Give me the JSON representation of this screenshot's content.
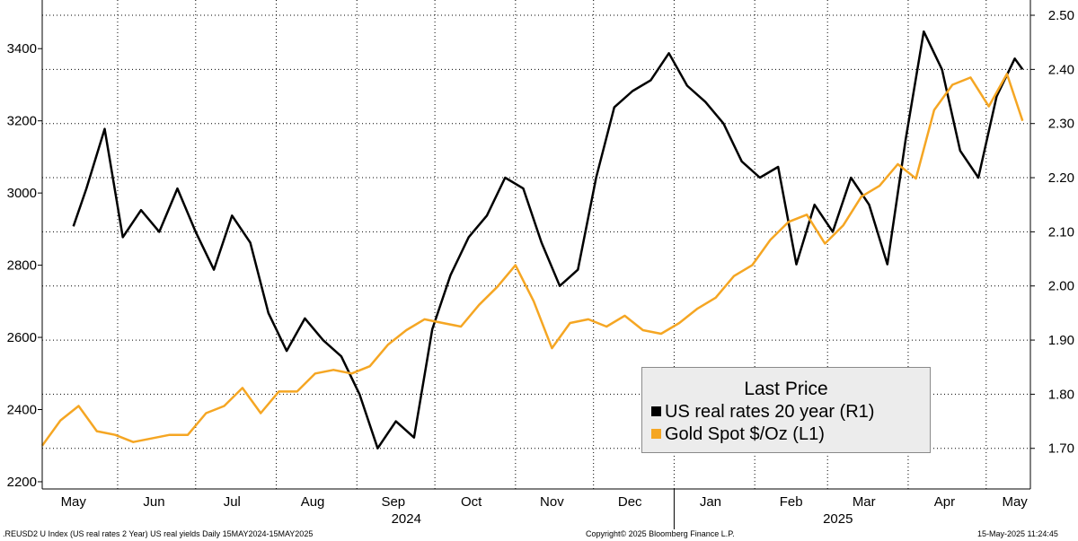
{
  "chart_data": {
    "type": "line",
    "xlabel": "",
    "year_labels": [
      {
        "label": "2024",
        "date": "2024-09-20"
      },
      {
        "label": "2025",
        "date": "2025-03-05"
      }
    ],
    "x_range": [
      "2024-05-03",
      "2025-05-18"
    ],
    "x_ticks": [
      {
        "label": "May",
        "date": "2024-05-15"
      },
      {
        "label": "Jun",
        "date": "2024-06-15"
      },
      {
        "label": "Jul",
        "date": "2024-07-15"
      },
      {
        "label": "Aug",
        "date": "2024-08-15"
      },
      {
        "label": "Sep",
        "date": "2024-09-15"
      },
      {
        "label": "Oct",
        "date": "2024-10-15"
      },
      {
        "label": "Nov",
        "date": "2024-11-15"
      },
      {
        "label": "Dec",
        "date": "2024-12-15"
      },
      {
        "label": "Jan",
        "date": "2025-01-15"
      },
      {
        "label": "Feb",
        "date": "2025-02-15"
      },
      {
        "label": "Mar",
        "date": "2025-03-15"
      },
      {
        "label": "Apr",
        "date": "2025-04-15"
      },
      {
        "label": "May",
        "date": "2025-05-12"
      }
    ],
    "y_left": {
      "ylim": [
        2180,
        3500
      ],
      "ticks": [
        "2200",
        "2400",
        "2600",
        "2800",
        "3000",
        "3200",
        "3400"
      ]
    },
    "y_right": {
      "ylim": [
        1.625,
        2.505
      ],
      "ticks": [
        "1.70",
        "1.80",
        "1.90",
        "2.00",
        "2.10",
        "2.20",
        "2.30",
        "2.40",
        "2.50"
      ]
    },
    "grid": true,
    "series": [
      {
        "name": "US real rates 20 year  (R1)",
        "axis": "right",
        "color": "#000000",
        "x": [
          "2024-05-15",
          "2024-05-20",
          "2024-05-27",
          "2024-06-03",
          "2024-06-10",
          "2024-06-17",
          "2024-06-24",
          "2024-07-01",
          "2024-07-08",
          "2024-07-15",
          "2024-07-22",
          "2024-07-29",
          "2024-08-05",
          "2024-08-12",
          "2024-08-19",
          "2024-08-26",
          "2024-09-02",
          "2024-09-09",
          "2024-09-16",
          "2024-09-23",
          "2024-09-30",
          "2024-10-07",
          "2024-10-14",
          "2024-10-21",
          "2024-10-28",
          "2024-11-04",
          "2024-11-11",
          "2024-11-18",
          "2024-11-25",
          "2024-12-02",
          "2024-12-09",
          "2024-12-16",
          "2024-12-23",
          "2024-12-30",
          "2025-01-06",
          "2025-01-13",
          "2025-01-20",
          "2025-01-27",
          "2025-02-03",
          "2025-02-10",
          "2025-02-17",
          "2025-02-24",
          "2025-03-03",
          "2025-03-10",
          "2025-03-17",
          "2025-03-24",
          "2025-03-31",
          "2025-04-07",
          "2025-04-14",
          "2025-04-21",
          "2025-04-28",
          "2025-05-05",
          "2025-05-12",
          "2025-05-15"
        ],
        "values": [
          2.11,
          2.18,
          2.29,
          2.09,
          2.14,
          2.1,
          2.18,
          2.1,
          2.03,
          2.13,
          2.08,
          1.95,
          1.88,
          1.94,
          1.9,
          1.87,
          1.8,
          1.7,
          1.75,
          1.72,
          1.92,
          2.02,
          2.09,
          2.13,
          2.2,
          2.18,
          2.08,
          2.0,
          2.03,
          2.2,
          2.33,
          2.36,
          2.38,
          2.43,
          2.37,
          2.34,
          2.3,
          2.23,
          2.2,
          2.22,
          2.04,
          2.15,
          2.1,
          2.2,
          2.15,
          2.04,
          2.27,
          2.47,
          2.4,
          2.25,
          2.2,
          2.35,
          2.42,
          2.4
        ]
      },
      {
        "name": "Gold Spot $/Oz  (L1)",
        "axis": "left",
        "color": "#f5a623",
        "x": [
          "2024-05-03",
          "2024-05-10",
          "2024-05-17",
          "2024-05-24",
          "2024-05-31",
          "2024-06-07",
          "2024-06-14",
          "2024-06-21",
          "2024-06-28",
          "2024-07-05",
          "2024-07-12",
          "2024-07-19",
          "2024-07-26",
          "2024-08-02",
          "2024-08-09",
          "2024-08-16",
          "2024-08-23",
          "2024-08-30",
          "2024-09-06",
          "2024-09-13",
          "2024-09-20",
          "2024-09-27",
          "2024-10-04",
          "2024-10-11",
          "2024-10-18",
          "2024-10-25",
          "2024-11-01",
          "2024-11-08",
          "2024-11-15",
          "2024-11-22",
          "2024-11-29",
          "2024-12-06",
          "2024-12-13",
          "2024-12-20",
          "2024-12-27",
          "2025-01-03",
          "2025-01-10",
          "2025-01-17",
          "2025-01-24",
          "2025-01-31",
          "2025-02-07",
          "2025-02-14",
          "2025-02-21",
          "2025-02-28",
          "2025-03-07",
          "2025-03-14",
          "2025-03-21",
          "2025-03-28",
          "2025-04-04",
          "2025-04-11",
          "2025-04-18",
          "2025-04-25",
          "2025-05-02",
          "2025-05-09",
          "2025-05-15"
        ],
        "values": [
          2300,
          2370,
          2410,
          2340,
          2330,
          2310,
          2320,
          2330,
          2330,
          2390,
          2410,
          2460,
          2390,
          2450,
          2450,
          2500,
          2510,
          2500,
          2520,
          2580,
          2620,
          2650,
          2640,
          2630,
          2690,
          2740,
          2800,
          2700,
          2570,
          2640,
          2650,
          2630,
          2660,
          2620,
          2610,
          2640,
          2680,
          2710,
          2770,
          2800,
          2870,
          2920,
          2940,
          2860,
          2910,
          2990,
          3020,
          3080,
          3040,
          3230,
          3300,
          3320,
          3240,
          3330,
          3200
        ]
      }
    ]
  },
  "legend": {
    "title": "Last Price",
    "entries": [
      {
        "label": "US real rates 20 year  (R1)",
        "color": "#000000"
      },
      {
        "label": "Gold Spot $/Oz  (L1)",
        "color": "#f5a623"
      }
    ]
  },
  "footer": {
    "left": ".REUSD2 U Index (US real rates 2 Year) US real yields  Daily 15MAY2024-15MAY2025",
    "center": "Copyright© 2025 Bloomberg Finance L.P.",
    "right": "15-May-2025 11:24:45"
  }
}
